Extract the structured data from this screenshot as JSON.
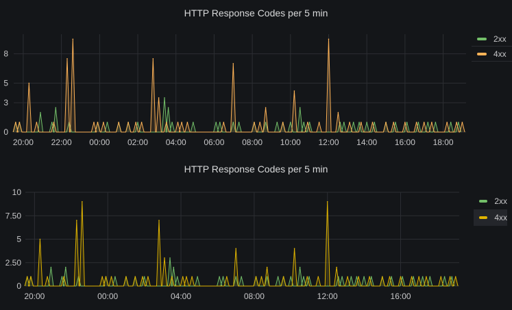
{
  "panels": [
    {
      "title": "HTTP Response Codes per 5 min",
      "legend": [
        {
          "label": "2xx",
          "color": "#73bf69"
        },
        {
          "label": "4xx",
          "color": "#ffb357"
        }
      ]
    },
    {
      "title": "HTTP Response Codes per 5 min",
      "legend": [
        {
          "label": "2xx",
          "color": "#73bf69"
        },
        {
          "label": "4xx",
          "color": "#e0b400"
        }
      ]
    }
  ],
  "chart_data": [
    {
      "type": "line",
      "title": "HTTP Response Codes per 5 min",
      "x_unit": "hours since 20:00 (time of day)",
      "xlim": [
        -0.5,
        23.2
      ],
      "ylim": [
        0,
        10
      ],
      "y_ticks": [
        0,
        3,
        5,
        8
      ],
      "y_tick_labels": [
        "0",
        "3",
        "5",
        "8"
      ],
      "x_ticks": [
        0,
        2,
        4,
        6,
        8,
        10,
        12,
        14,
        16,
        18,
        20,
        22
      ],
      "x_tick_labels": [
        "20:00",
        "22:00",
        "00:00",
        "02:00",
        "04:00",
        "06:00",
        "08:00",
        "10:00",
        "12:00",
        "14:00",
        "16:00",
        "18:00"
      ],
      "grid": true,
      "legend_position": "right",
      "series": [
        {
          "name": "2xx",
          "color": "#73bf69",
          "x": [
            -0.4,
            -0.2,
            0.9,
            1.5,
            1.7,
            2.4,
            3.9,
            4.4,
            5.0,
            5.5,
            6.0,
            7.4,
            7.6,
            7.8,
            8.9,
            10.1,
            10.3,
            11.0,
            11.3,
            12.1,
            12.7,
            13.3,
            13.6,
            14.0,
            14.5,
            14.7,
            15.0,
            16.6,
            16.8,
            17.3,
            17.6,
            18.0,
            18.4,
            19.0,
            19.5,
            20.1,
            20.7,
            21.2,
            21.6,
            22.4,
            22.8
          ],
          "y": [
            1,
            1,
            2,
            1,
            2.5,
            1,
            1,
            1,
            1,
            1,
            1,
            3.5,
            2.5,
            1,
            1,
            1,
            1,
            1,
            1,
            1,
            1,
            1,
            1,
            1,
            2.5,
            1,
            1,
            1,
            1,
            1,
            1,
            1,
            1,
            1,
            1,
            1,
            1,
            1,
            1,
            1,
            1
          ]
        },
        {
          "name": "4xx",
          "color": "#ffb357",
          "x": [
            -0.4,
            -0.2,
            0.3,
            0.7,
            1.6,
            2.3,
            2.6,
            3.7,
            3.9,
            4.2,
            5.0,
            5.5,
            5.9,
            6.2,
            6.8,
            7.1,
            7.5,
            8.1,
            8.3,
            8.6,
            10.5,
            11.0,
            12.1,
            12.4,
            12.7,
            13.6,
            14.2,
            14.9,
            15.5,
            16.0,
            16.5,
            17.1,
            17.7,
            18.3,
            19.0,
            19.4,
            20.0,
            20.6,
            21.0,
            21.4,
            22.2,
            22.7,
            23.0
          ],
          "y": [
            1,
            1,
            5,
            1,
            1,
            7.5,
            9.5,
            1,
            1,
            1,
            1,
            1,
            1,
            1,
            7.5,
            3.5,
            1,
            1,
            1,
            1,
            1,
            7,
            1,
            1,
            2.5,
            1,
            4.2,
            1,
            1,
            9.5,
            2,
            1,
            1,
            1,
            1,
            1,
            1,
            1,
            1,
            1,
            1,
            1,
            1
          ]
        }
      ]
    },
    {
      "type": "line",
      "title": "HTTP Response Codes per 5 min",
      "x_unit": "hours since 20:00 (time of day)",
      "xlim": [
        -0.5,
        23.2
      ],
      "ylim": [
        0,
        10
      ],
      "y_ticks": [
        0,
        2.5,
        5,
        7.5,
        10
      ],
      "y_tick_labels": [
        "0",
        "2.50",
        "5",
        "7.50",
        "10"
      ],
      "x_ticks": [
        0,
        4,
        8,
        12,
        16,
        20
      ],
      "x_tick_labels": [
        "20:00",
        "00:00",
        "04:00",
        "08:00",
        "12:00",
        "16:00"
      ],
      "grid": true,
      "legend_position": "right",
      "series": [
        {
          "name": "2xx",
          "color": "#73bf69",
          "x": [
            -0.4,
            -0.2,
            0.9,
            1.5,
            1.7,
            2.4,
            3.9,
            4.4,
            5.0,
            5.5,
            6.0,
            7.4,
            7.6,
            7.8,
            8.9,
            10.1,
            10.3,
            11.0,
            11.3,
            12.1,
            12.7,
            13.3,
            13.6,
            14.0,
            14.5,
            14.7,
            15.0,
            16.6,
            16.8,
            17.3,
            17.6,
            18.0,
            18.4,
            19.0,
            19.5,
            20.1,
            20.7,
            21.2,
            21.6,
            22.4,
            22.8
          ],
          "y": [
            1,
            1,
            2,
            1,
            2,
            1,
            1,
            1,
            1,
            1,
            1,
            3,
            2,
            1,
            1,
            1,
            1,
            1,
            1,
            1,
            1,
            1,
            1,
            1,
            2,
            1,
            1,
            1,
            1,
            1,
            1,
            1,
            1,
            1,
            1,
            1,
            1,
            1,
            1,
            1,
            1
          ]
        },
        {
          "name": "4xx",
          "color": "#e0b400",
          "x": [
            -0.4,
            -0.2,
            0.3,
            0.7,
            1.6,
            2.3,
            2.6,
            3.7,
            3.9,
            4.2,
            5.0,
            5.5,
            5.9,
            6.2,
            6.8,
            7.1,
            7.5,
            8.1,
            8.3,
            8.6,
            10.5,
            11.0,
            12.1,
            12.4,
            12.7,
            13.6,
            14.2,
            14.9,
            15.5,
            16.0,
            16.5,
            17.1,
            17.7,
            18.3,
            19.0,
            19.4,
            20.0,
            20.6,
            21.0,
            21.4,
            22.2,
            22.7,
            23.0
          ],
          "y": [
            1,
            1,
            5,
            1,
            1,
            7,
            9,
            1,
            1,
            1,
            1,
            1,
            1,
            1,
            7,
            3,
            1,
            1,
            1,
            1,
            1,
            4,
            1,
            1,
            2,
            1,
            4,
            1,
            1,
            9,
            2,
            1,
            1,
            1,
            1,
            1,
            1,
            1,
            1,
            1,
            1,
            1,
            1
          ]
        }
      ]
    }
  ]
}
